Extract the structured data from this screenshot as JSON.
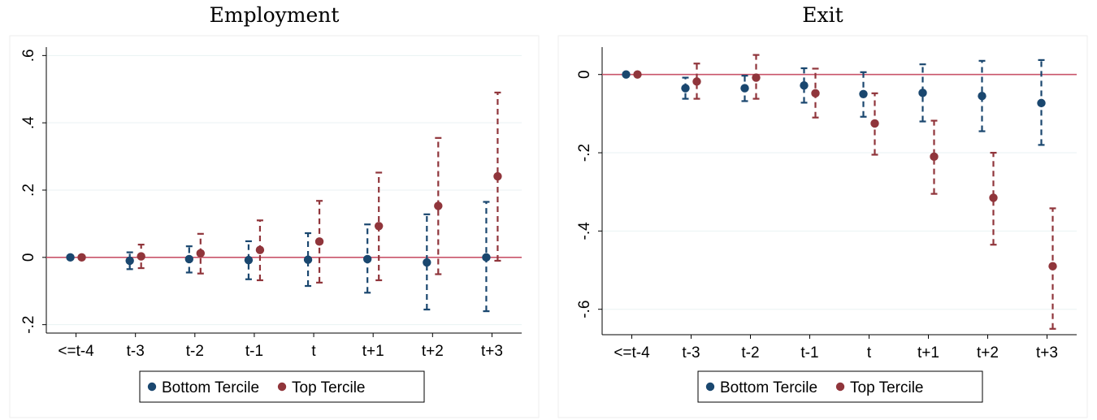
{
  "chart_data": [
    {
      "type": "scatter",
      "title": "Employment",
      "categories": [
        "<=t-4",
        "t-3",
        "t-2",
        "t-1",
        "t",
        "t+1",
        "t+2",
        "t+3"
      ],
      "yticks": [
        -0.2,
        0,
        0.2,
        0.4,
        0.6
      ],
      "yticklabels": [
        "-.2",
        "0",
        ".2",
        ".4",
        ".6"
      ],
      "ylim": [
        -0.225,
        0.625
      ],
      "reference_line": 0,
      "grid": true,
      "legend_position": "bottom",
      "error_bars": "dashed",
      "series": [
        {
          "name": "Bottom Tercile",
          "color": "#1a476f",
          "values": [
            0,
            -0.01,
            -0.005,
            -0.008,
            -0.007,
            -0.005,
            -0.015,
            0.0
          ],
          "lower": [
            0,
            -0.035,
            -0.045,
            -0.065,
            -0.085,
            -0.105,
            -0.155,
            -0.16
          ],
          "upper": [
            0,
            0.015,
            0.033,
            0.048,
            0.072,
            0.098,
            0.128,
            0.165
          ]
        },
        {
          "name": "Top Tercile",
          "color": "#90353b",
          "values": [
            0,
            0.003,
            0.012,
            0.022,
            0.047,
            0.093,
            0.153,
            0.241
          ],
          "lower": [
            0,
            -0.032,
            -0.048,
            -0.068,
            -0.075,
            -0.068,
            -0.05,
            -0.01
          ],
          "upper": [
            0,
            0.038,
            0.07,
            0.11,
            0.168,
            0.252,
            0.355,
            0.49
          ]
        }
      ]
    },
    {
      "type": "scatter",
      "title": "Exit",
      "categories": [
        "<=t-4",
        "t-3",
        "t-2",
        "t-1",
        "t",
        "t+1",
        "t+2",
        "t+3"
      ],
      "yticks": [
        -0.6,
        -0.4,
        -0.2,
        0
      ],
      "yticklabels": [
        "-.6",
        "-.4",
        "-.2",
        "0"
      ],
      "ylim": [
        -0.665,
        0.07
      ],
      "reference_line": 0,
      "grid": true,
      "legend_position": "bottom",
      "error_bars": "dashed",
      "series": [
        {
          "name": "Bottom Tercile",
          "color": "#1a476f",
          "values": [
            0,
            -0.035,
            -0.035,
            -0.028,
            -0.05,
            -0.047,
            -0.055,
            -0.073
          ],
          "lower": [
            0,
            -0.062,
            -0.068,
            -0.072,
            -0.108,
            -0.12,
            -0.145,
            -0.18
          ],
          "upper": [
            0,
            -0.008,
            -0.003,
            0.016,
            0.006,
            0.026,
            0.035,
            0.037
          ]
        },
        {
          "name": "Top Tercile",
          "color": "#90353b",
          "values": [
            0,
            -0.018,
            -0.008,
            -0.048,
            -0.125,
            -0.21,
            -0.315,
            -0.49
          ],
          "lower": [
            0,
            -0.062,
            -0.062,
            -0.11,
            -0.205,
            -0.305,
            -0.435,
            -0.65
          ],
          "upper": [
            0,
            0.028,
            0.05,
            0.015,
            -0.048,
            -0.118,
            -0.2,
            -0.342
          ]
        }
      ]
    }
  ]
}
